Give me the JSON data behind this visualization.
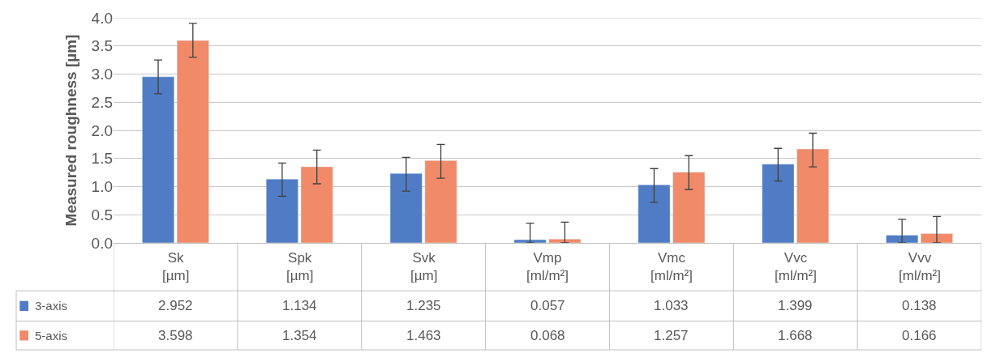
{
  "chart_data": {
    "type": "bar",
    "ylabel": "Measured roughness [µm]",
    "categories": [
      "Sk\n[µm]",
      "Spk\n[µm]",
      "Svk\n[µm]",
      "Vmp\n[ml/m²]",
      "Vmc\n[ml/m²]",
      "Vvc\n[ml/m²]",
      "Vvv\n[ml/m²]"
    ],
    "series": [
      {
        "name": "3-axis",
        "color": "#4f7cc4",
        "values": [
          2.952,
          1.134,
          1.235,
          0.057,
          1.033,
          1.399,
          0.138
        ],
        "errors": [
          [
            2.65,
            3.25
          ],
          [
            0.83,
            1.42
          ],
          [
            0.92,
            1.52
          ],
          [
            0,
            0.35
          ],
          [
            0.72,
            1.32
          ],
          [
            1.1,
            1.68
          ],
          [
            0,
            0.42
          ]
        ]
      },
      {
        "name": "5-axis",
        "color": "#f08a68",
        "values": [
          3.598,
          1.354,
          1.463,
          0.068,
          1.257,
          1.668,
          0.166
        ],
        "errors": [
          [
            3.3,
            3.9
          ],
          [
            1.05,
            1.65
          ],
          [
            1.15,
            1.75
          ],
          [
            0,
            0.37
          ],
          [
            0.95,
            1.55
          ],
          [
            1.35,
            1.95
          ],
          [
            0,
            0.47
          ]
        ]
      }
    ],
    "ylim": [
      0,
      4
    ],
    "yticks": [
      {
        "value": 0,
        "label": "0.0"
      },
      0.5,
      {
        "value": 1,
        "label": "1.0"
      },
      1.5,
      {
        "value": 2,
        "label": "2.0"
      },
      2.5,
      {
        "value": 3,
        "label": "3.0"
      },
      3.5,
      {
        "value": 4,
        "label": "4.0"
      }
    ],
    "grid": "y",
    "legend": "bottom left",
    "data_labels": true
  }
}
